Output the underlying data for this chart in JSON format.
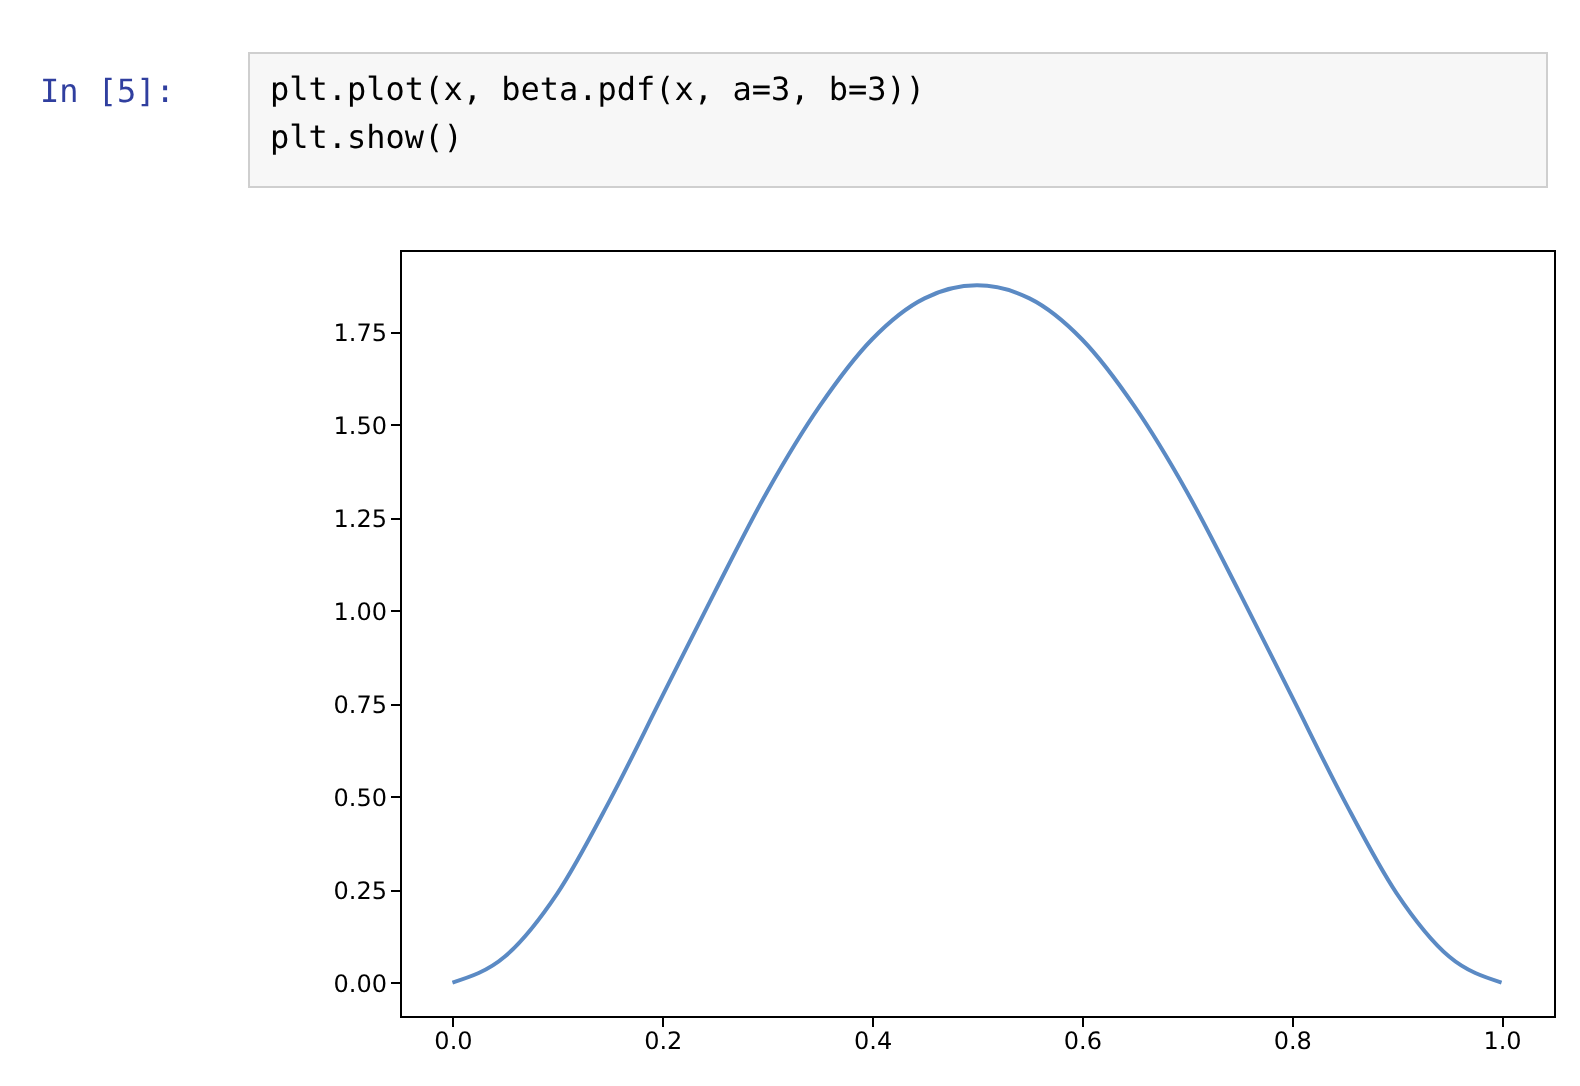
{
  "chart_data": {
    "type": "line",
    "annotations": [
      "In [5]:",
      "plt.plot(x, beta.pdf(x, a=3, b=3))",
      "plt.show()"
    ],
    "x": [
      0,
      0.05,
      0.1,
      0.15,
      0.2,
      0.25,
      0.3,
      0.35,
      0.4,
      0.45,
      0.5,
      0.55,
      0.6,
      0.65,
      0.7,
      0.75,
      0.8,
      0.85,
      0.9,
      0.95,
      1.0
    ],
    "series": [
      {
        "color": "#5b8ac4",
        "values": [
          0,
          0.07,
          0.24,
          0.49,
          0.77,
          1.05,
          1.32,
          1.55,
          1.73,
          1.84,
          1.875,
          1.84,
          1.73,
          1.55,
          1.32,
          1.05,
          0.77,
          0.49,
          0.24,
          0.07,
          0
        ]
      }
    ],
    "xlim": [
      -0.05,
      1.05
    ],
    "ylim": [
      -0.09,
      1.97
    ],
    "xticks": [
      {
        "value": 0,
        "label": "0.0"
      },
      {
        "value": 0.2,
        "label": "0.2"
      },
      {
        "value": 0.4,
        "label": "0.4"
      },
      {
        "value": 0.6,
        "label": "0.6"
      },
      {
        "value": 0.8,
        "label": "0.8"
      },
      {
        "value": 1.0,
        "label": "1.0"
      }
    ],
    "yticks": [
      {
        "value": 0,
        "label": "0.00"
      },
      {
        "value": 0.25,
        "label": "0.25"
      },
      {
        "value": 0.5,
        "label": "0.50"
      },
      {
        "value": 0.75,
        "label": "0.75"
      },
      {
        "value": 1.0,
        "label": "1.00"
      },
      {
        "value": 1.25,
        "label": "1.25"
      },
      {
        "value": 1.5,
        "label": "1.50"
      },
      {
        "value": 1.75,
        "label": "1.75"
      }
    ],
    "grid": false,
    "marker": "none",
    "line_style": "solid"
  }
}
